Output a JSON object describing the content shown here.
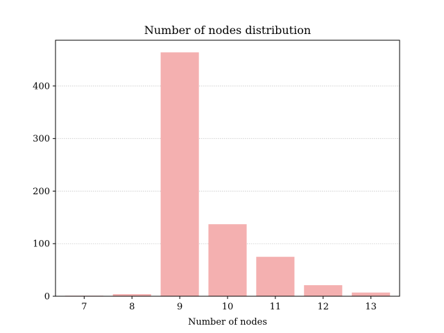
{
  "chart_data": {
    "type": "bar",
    "title": "Number of nodes distribution",
    "xlabel": "Number of nodes",
    "ylabel": "",
    "categories": [
      "7",
      "8",
      "9",
      "10",
      "11",
      "12",
      "13"
    ],
    "values": [
      1,
      4,
      464,
      137,
      75,
      21,
      7
    ],
    "ylim": [
      0,
      487
    ],
    "yticks": [
      0,
      100,
      200,
      300,
      400
    ],
    "grid": "horizontal",
    "bar_color": "#f4b0b0",
    "grid_color": "#c8c8c8"
  }
}
